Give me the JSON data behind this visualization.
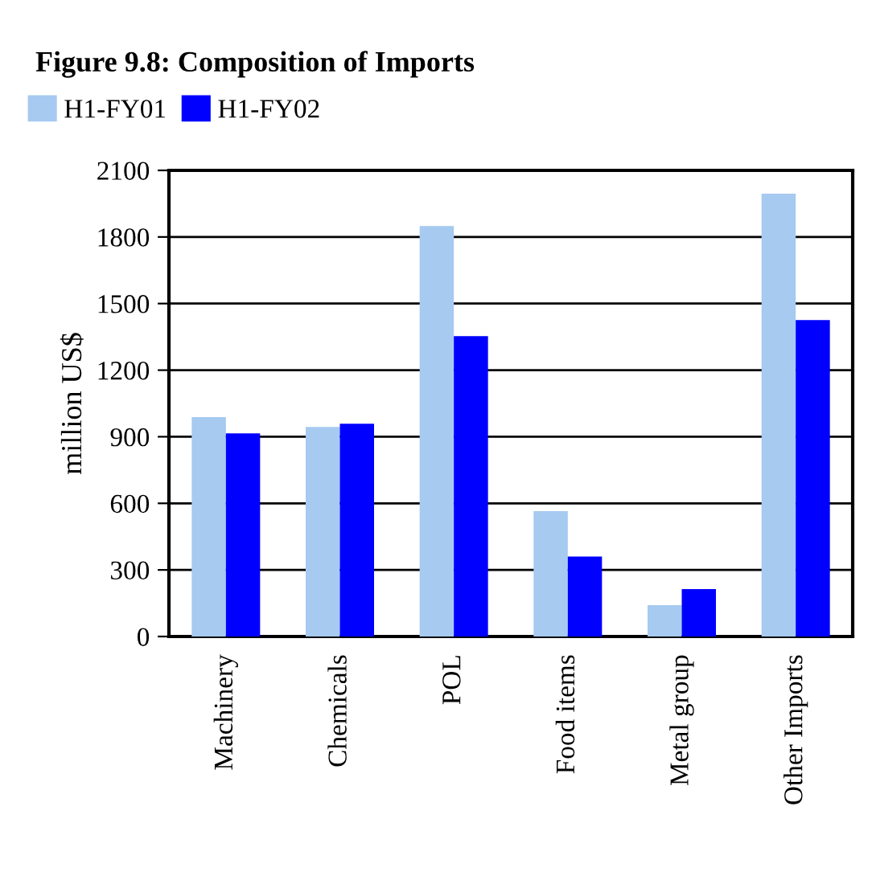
{
  "chart_data": {
    "type": "bar",
    "title": "Figure 9.8: Composition of Imports",
    "ylabel": "million US$",
    "categories": [
      "Machinery",
      "Chemicals",
      "POL",
      "Food items",
      "Metal group",
      "Other Imports"
    ],
    "series": [
      {
        "name": "H1-FY01",
        "color": "#a6caf0",
        "values": [
          988,
          944,
          1849,
          565,
          141,
          1995
        ]
      },
      {
        "name": "H1-FY02",
        "color": "#0000ff",
        "values": [
          915,
          959,
          1353,
          360,
          214,
          1426
        ]
      }
    ],
    "ylim": [
      0,
      2100
    ],
    "yticks": [
      0,
      300,
      600,
      900,
      1200,
      1500,
      1800,
      2100
    ],
    "grid": "y",
    "legend": "top left"
  }
}
